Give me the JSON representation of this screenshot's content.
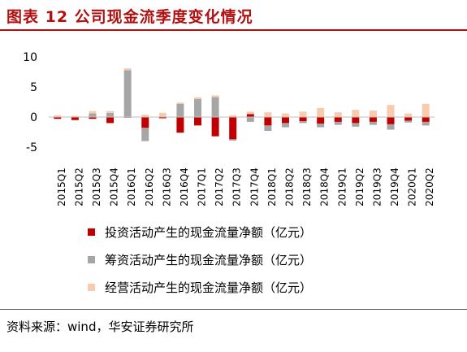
{
  "title": "图表 12 公司现金流季度变化情况",
  "source": "资料来源：wind，华安证券研究所",
  "chart_data": {
    "type": "bar",
    "stacked": true,
    "categories": [
      "2015Q1",
      "2015Q2",
      "2015Q3",
      "2015Q4",
      "2016Q1",
      "2016Q2",
      "2016Q3",
      "2016Q4",
      "2017Q1",
      "2017Q2",
      "2017Q3",
      "2017Q4",
      "2018Q1",
      "2018Q2",
      "2018Q3",
      "2018Q4",
      "2019Q1",
      "2019Q2",
      "2019Q3",
      "2019Q4",
      "2020Q1",
      "2020Q2"
    ],
    "series": [
      {
        "name": "投资活动产生的现金流量净额（亿元）",
        "color": "#c00000",
        "values": [
          -0.3,
          -0.5,
          -0.3,
          -1.0,
          -0.1,
          -1.8,
          -0.2,
          -2.6,
          -1.4,
          -3.2,
          -3.7,
          0.5,
          -1.4,
          -1.0,
          -0.7,
          -1.1,
          -0.8,
          -1.0,
          -0.8,
          -1.2,
          -0.6,
          -0.8
        ]
      },
      {
        "name": "筹资活动产生的现金流量净额（亿元）",
        "color": "#a6a6a6",
        "values": [
          0,
          0,
          0.6,
          0.7,
          7.8,
          -2.2,
          0,
          2.2,
          3.0,
          3.3,
          -0.2,
          -0.8,
          -0.9,
          -0.7,
          -0.3,
          -0.6,
          -0.5,
          -0.6,
          -0.5,
          -0.9,
          -0.3,
          -0.6
        ]
      },
      {
        "name": "经营活动产生的现金流量净额（亿元）",
        "color": "#f8cbad",
        "values": [
          0.3,
          0.2,
          0.4,
          0.3,
          0.3,
          0.4,
          0.7,
          0.2,
          0.3,
          0.3,
          0.3,
          0.4,
          0.8,
          0.6,
          0.9,
          1.5,
          0.8,
          1.2,
          1.1,
          2.0,
          0.6,
          2.2
        ]
      }
    ],
    "yticks": [
      10,
      5,
      0,
      -5
    ],
    "ylim": [
      -5,
      10
    ],
    "legend_position": "bottom"
  }
}
